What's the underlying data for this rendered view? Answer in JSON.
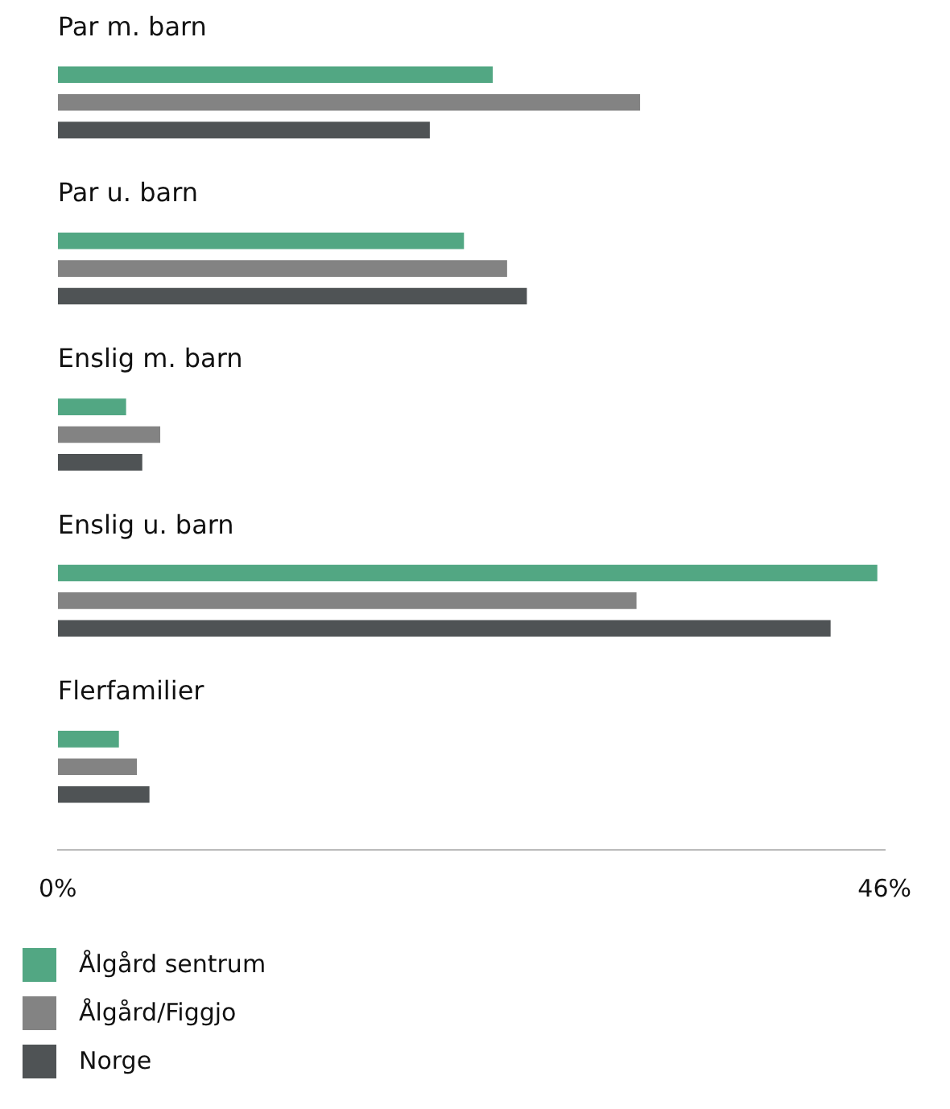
{
  "chart_data": {
    "type": "bar",
    "orientation": "horizontal",
    "categories": [
      "Par m. barn",
      "Par u. barn",
      "Enslig m. barn",
      "Enslig u. barn",
      "Flerfamilier"
    ],
    "series": [
      {
        "name": "Ålgård sentrum",
        "color": "#52a783",
        "values": [
          24.2,
          22.6,
          3.8,
          45.6,
          3.4
        ]
      },
      {
        "name": "Ålgård/Figgjo",
        "color": "#838383",
        "values": [
          32.4,
          25.0,
          5.7,
          32.2,
          4.4
        ]
      },
      {
        "name": "Norge",
        "color": "#4f5355",
        "values": [
          20.7,
          26.1,
          4.7,
          43.0,
          5.1
        ]
      }
    ],
    "xlim": [
      0,
      46
    ],
    "xticks": [
      {
        "value": 0,
        "label": "0%"
      },
      {
        "value": 46,
        "label": "46%"
      }
    ],
    "grid": false,
    "legend": "bottom"
  }
}
